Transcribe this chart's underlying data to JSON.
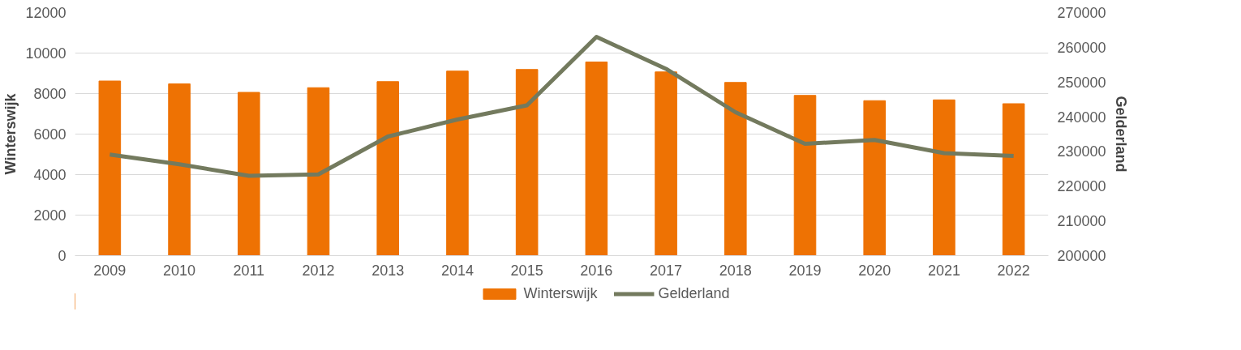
{
  "chart_data": {
    "type": "bar",
    "ylabel": "Winterswijk",
    "y2label": "Gelderland",
    "categories": [
      "2009",
      "2010",
      "2011",
      "2012",
      "2013",
      "2014",
      "2015",
      "2016",
      "2017",
      "2018",
      "2019",
      "2020",
      "2021",
      "2022"
    ],
    "series": [
      {
        "name": "Winterswijk",
        "color": "#ee7203",
        "values": [
          8620,
          8480,
          8060,
          8290,
          8590,
          9110,
          9190,
          9560,
          9070,
          8550,
          7910,
          7650,
          7690,
          7500
        ]
      },
      {
        "name": "Gelderland",
        "type": "line",
        "axis": "y2",
        "color": "#737a5e",
        "values": [
          229100,
          226300,
          223000,
          223400,
          234300,
          239200,
          243300,
          263000,
          253800,
          241300,
          232200,
          233300,
          229500,
          228700
        ]
      }
    ],
    "ylim": [
      0,
      12000
    ],
    "yticks": [
      0,
      2000,
      4000,
      6000,
      8000,
      10000,
      12000
    ],
    "y2lim": [
      200000,
      270000
    ],
    "y2ticks": [
      200000,
      210000,
      220000,
      230000,
      240000,
      250000,
      260000,
      270000
    ],
    "grid": "y",
    "legend": "bottom"
  }
}
